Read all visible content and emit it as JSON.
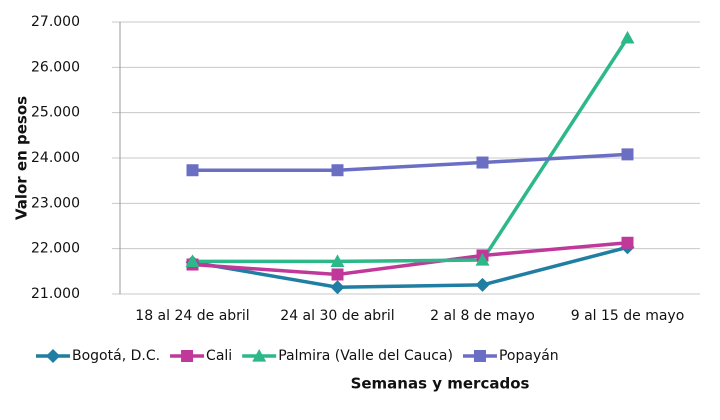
{
  "chart_data": {
    "type": "line",
    "x_label": "Semanas y mercados",
    "y_label": "Valor en pesos",
    "categories": [
      "18 al 24 de abril",
      "24 al 30 de abril",
      "2 al 8 de mayo",
      "9 al 15 de mayo"
    ],
    "series": [
      {
        "name": "Bogotá, D.C.",
        "color": "#1f7ea1",
        "marker": "diamond",
        "values": [
          21700,
          21150,
          21200,
          22030
        ]
      },
      {
        "name": "Cali",
        "color": "#c0399a",
        "marker": "square",
        "values": [
          21650,
          21430,
          21850,
          22130
        ]
      },
      {
        "name": "Palmira (Valle del Cauca)",
        "color": "#2db88a",
        "marker": "triangle",
        "values": [
          21720,
          21720,
          21750,
          26650
        ]
      },
      {
        "name": "Popayán",
        "color": "#6b6fc4",
        "marker": "square",
        "values": [
          23730,
          23730,
          23900,
          24080
        ]
      }
    ],
    "ylim": [
      21000,
      27000
    ],
    "yticks": [
      {
        "value": 21000,
        "label": "21.000"
      },
      {
        "value": 22000,
        "label": "22.000"
      },
      {
        "value": 23000,
        "label": "23.000"
      },
      {
        "value": 24000,
        "label": "24.000"
      },
      {
        "value": 25000,
        "label": "25.000"
      },
      {
        "value": 26000,
        "label": "26.000"
      },
      {
        "value": 27000,
        "label": "27.000"
      }
    ],
    "grid": true,
    "legend": "bottom"
  }
}
